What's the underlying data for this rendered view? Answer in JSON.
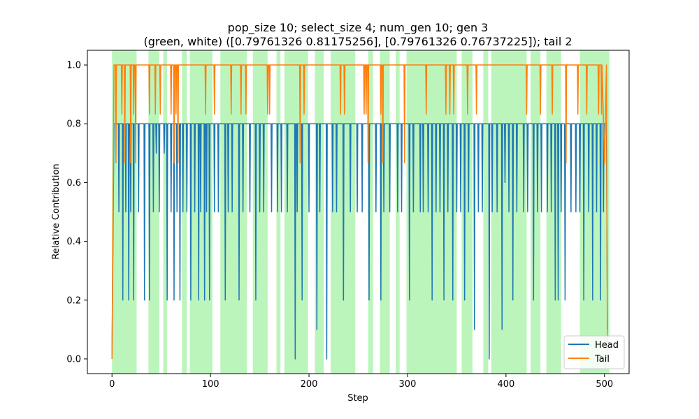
{
  "chart_data": {
    "type": "line",
    "title_lines": [
      "pop_size 10; select_size 4; num_gen 10; gen 3",
      "(green, white) ([0.79761326 0.81175256], [0.79761326 0.76737225]); tail 2"
    ],
    "xlabel": "Step",
    "ylabel": "Relative Contribution",
    "xlim": [
      -25,
      525
    ],
    "ylim": [
      -0.05,
      1.05
    ],
    "xticks": [
      0,
      100,
      200,
      300,
      400,
      500
    ],
    "yticks": [
      0.0,
      0.2,
      0.4,
      0.6,
      0.8,
      1.0
    ],
    "xtick_labels": [
      "0",
      "100",
      "200",
      "300",
      "400",
      "500"
    ],
    "ytick_labels": [
      "0.0",
      "0.2",
      "0.4",
      "0.6",
      "0.8",
      "1.0"
    ],
    "grid": false,
    "legend_position": "lower right",
    "shading": {
      "color": "#90ee90",
      "opacity": 0.6,
      "intervals": [
        [
          0,
          25
        ],
        [
          37,
          48
        ],
        [
          52,
          56
        ],
        [
          71,
          76
        ],
        [
          79,
          102
        ],
        [
          110,
          137
        ],
        [
          143,
          158
        ],
        [
          167,
          171
        ],
        [
          175,
          199
        ],
        [
          206,
          215
        ],
        [
          222,
          247
        ],
        [
          260,
          265
        ],
        [
          272,
          282
        ],
        [
          288,
          292
        ],
        [
          299,
          350
        ],
        [
          355,
          366
        ],
        [
          377,
          382
        ],
        [
          385,
          421
        ],
        [
          425,
          435
        ],
        [
          441,
          456
        ],
        [
          475,
          505
        ]
      ]
    },
    "series": [
      {
        "name": "Head",
        "color": "#1f77b4",
        "base": 0.8,
        "x": [
          0,
          2
        ],
        "y": [
          0.0,
          0.8
        ],
        "dips": [
          [
            7,
            0.5
          ],
          [
            11,
            0.2
          ],
          [
            14,
            0.5
          ],
          [
            17,
            0.2
          ],
          [
            19,
            0.5
          ],
          [
            22,
            0.2
          ],
          [
            27,
            0.5
          ],
          [
            33,
            0.2
          ],
          [
            38,
            0.2
          ],
          [
            42,
            0.5
          ],
          [
            45,
            0.7
          ],
          [
            48,
            0.5
          ],
          [
            53,
            0.7
          ],
          [
            56,
            0.2
          ],
          [
            60,
            0.5
          ],
          [
            63,
            0.2
          ],
          [
            66,
            0.5
          ],
          [
            69,
            0.2
          ],
          [
            72,
            0.5
          ],
          [
            76,
            0.5
          ],
          [
            80,
            0.2
          ],
          [
            84,
            0.5
          ],
          [
            88,
            0.2
          ],
          [
            90,
            0.5
          ],
          [
            94,
            0.2
          ],
          [
            96,
            0.5
          ],
          [
            99,
            0.2
          ],
          [
            104,
            0.5
          ],
          [
            108,
            0.5
          ],
          [
            115,
            0.2
          ],
          [
            118,
            0.5
          ],
          [
            122,
            0.5
          ],
          [
            129,
            0.2
          ],
          [
            133,
            0.5
          ],
          [
            140,
            0.5
          ],
          [
            146,
            0.2
          ],
          [
            150,
            0.5
          ],
          [
            154,
            0.5
          ],
          [
            162,
            0.5
          ],
          [
            168,
            0.5
          ],
          [
            172,
            0.5
          ],
          [
            178,
            0.5
          ],
          [
            186,
            0.0
          ],
          [
            188,
            0.5
          ],
          [
            193,
            0.2
          ],
          [
            200,
            0.5
          ],
          [
            208,
            0.1
          ],
          [
            211,
            0.5
          ],
          [
            218,
            0.0
          ],
          [
            224,
            0.5
          ],
          [
            228,
            0.5
          ],
          [
            235,
            0.2
          ],
          [
            242,
            0.5
          ],
          [
            249,
            0.5
          ],
          [
            254,
            0.5
          ],
          [
            261,
            0.2
          ],
          [
            268,
            0.5
          ],
          [
            273,
            0.2
          ],
          [
            276,
            0.5
          ],
          [
            282,
            0.5
          ],
          [
            290,
            0.5
          ],
          [
            294,
            0.5
          ],
          [
            302,
            0.2
          ],
          [
            306,
            0.5
          ],
          [
            313,
            0.5
          ],
          [
            316,
            0.5
          ],
          [
            321,
            0.5
          ],
          [
            325,
            0.2
          ],
          [
            329,
            0.5
          ],
          [
            333,
            0.5
          ],
          [
            337,
            0.2
          ],
          [
            341,
            0.5
          ],
          [
            346,
            0.2
          ],
          [
            350,
            0.5
          ],
          [
            354,
            0.5
          ],
          [
            358,
            0.2
          ],
          [
            362,
            0.5
          ],
          [
            368,
            0.1
          ],
          [
            372,
            0.5
          ],
          [
            376,
            0.5
          ],
          [
            383,
            0.0
          ],
          [
            386,
            0.5
          ],
          [
            391,
            0.5
          ],
          [
            396,
            0.1
          ],
          [
            399,
            0.6
          ],
          [
            403,
            0.5
          ],
          [
            407,
            0.2
          ],
          [
            411,
            0.5
          ],
          [
            418,
            0.5
          ],
          [
            422,
            0.5
          ],
          [
            428,
            0.2
          ],
          [
            432,
            0.5
          ],
          [
            436,
            0.5
          ],
          [
            442,
            0.5
          ],
          [
            446,
            0.5
          ],
          [
            450,
            0.2
          ],
          [
            453,
            0.2
          ],
          [
            456,
            0.5
          ],
          [
            460,
            0.2
          ],
          [
            466,
            0.5
          ],
          [
            471,
            0.5
          ],
          [
            475,
            0.5
          ],
          [
            479,
            0.2
          ],
          [
            484,
            0.5
          ],
          [
            488,
            0.2
          ],
          [
            492,
            0.5
          ],
          [
            496,
            0.2
          ],
          [
            499,
            0.5
          ]
        ],
        "end": [
          [
            502,
            0.8
          ],
          [
            503,
            0.1
          ]
        ]
      },
      {
        "name": "Tail",
        "color": "#ff7f0e",
        "base": 1.0,
        "x": [
          0,
          2
        ],
        "y": [
          0.0,
          1.0
        ],
        "dips": [
          [
            4,
            0.667
          ],
          [
            10,
            0.833
          ],
          [
            13,
            0.667
          ],
          [
            19,
            0.667
          ],
          [
            22,
            0.833
          ],
          [
            24,
            0.667
          ],
          [
            38,
            0.833
          ],
          [
            44,
            0.833
          ],
          [
            49,
            0.833
          ],
          [
            60,
            0.833
          ],
          [
            63,
            0.667
          ],
          [
            65,
            0.833
          ],
          [
            67,
            0.667
          ],
          [
            95,
            0.833
          ],
          [
            104,
            0.833
          ],
          [
            121,
            0.833
          ],
          [
            131,
            0.833
          ],
          [
            136,
            0.833
          ],
          [
            158,
            0.833
          ],
          [
            160,
            0.833
          ],
          [
            191,
            0.667
          ],
          [
            195,
            0.833
          ],
          [
            232,
            0.833
          ],
          [
            236,
            0.833
          ],
          [
            256,
            0.833
          ],
          [
            258,
            0.833
          ],
          [
            260,
            0.667
          ],
          [
            273,
            0.833
          ],
          [
            275,
            0.667
          ],
          [
            297,
            0.667
          ],
          [
            319,
            0.833
          ],
          [
            339,
            0.833
          ],
          [
            343,
            0.833
          ],
          [
            347,
            0.833
          ],
          [
            361,
            0.833
          ],
          [
            370,
            0.833
          ],
          [
            421,
            0.833
          ],
          [
            435,
            0.833
          ],
          [
            447,
            0.833
          ],
          [
            461,
            0.667
          ],
          [
            473,
            0.833
          ],
          [
            482,
            0.833
          ],
          [
            494,
            0.833
          ],
          [
            497,
            0.833
          ]
        ],
        "end": [
          [
            500,
            0.667
          ],
          [
            502,
            1.0
          ],
          [
            503,
            0.0
          ]
        ]
      }
    ]
  }
}
